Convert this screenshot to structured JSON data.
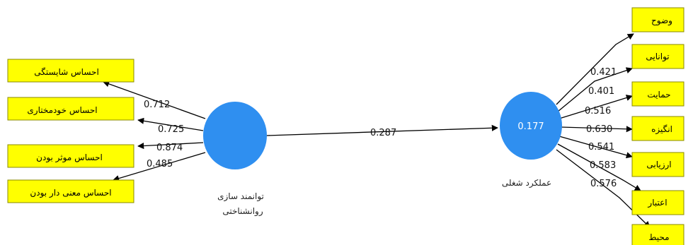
{
  "latent": {
    "exogenous": {
      "label_line1": "توانمند سازی",
      "label_line2": "روانشناختی",
      "value": ""
    },
    "endogenous": {
      "label": "عملکرد شغلی",
      "value": "0.177"
    },
    "color": "#2f8ff0"
  },
  "structural": {
    "coefficient": "0.287"
  },
  "left_indicators": [
    {
      "label": "احساس شایستگی",
      "loading": "0.712"
    },
    {
      "label": "احساس خودمختاری",
      "loading": "0.725"
    },
    {
      "label": "احساس موثر بودن",
      "loading": "0.874"
    },
    {
      "label": "احساس معنی دار بودن",
      "loading": "0.485"
    }
  ],
  "right_indicators": [
    {
      "label": "وضوح",
      "loading": "0.421"
    },
    {
      "label": "توانایی",
      "loading": "0.401"
    },
    {
      "label": "حمایت",
      "loading": "0.516"
    },
    {
      "label": "انگیزه",
      "loading": "0.630"
    },
    {
      "label": "ارزیابی",
      "loading": "0.541"
    },
    {
      "label": "اعتبار",
      "loading": "0.583"
    },
    {
      "label": "محیط",
      "loading": "0.576"
    }
  ],
  "indicator_color": "#ffff00"
}
